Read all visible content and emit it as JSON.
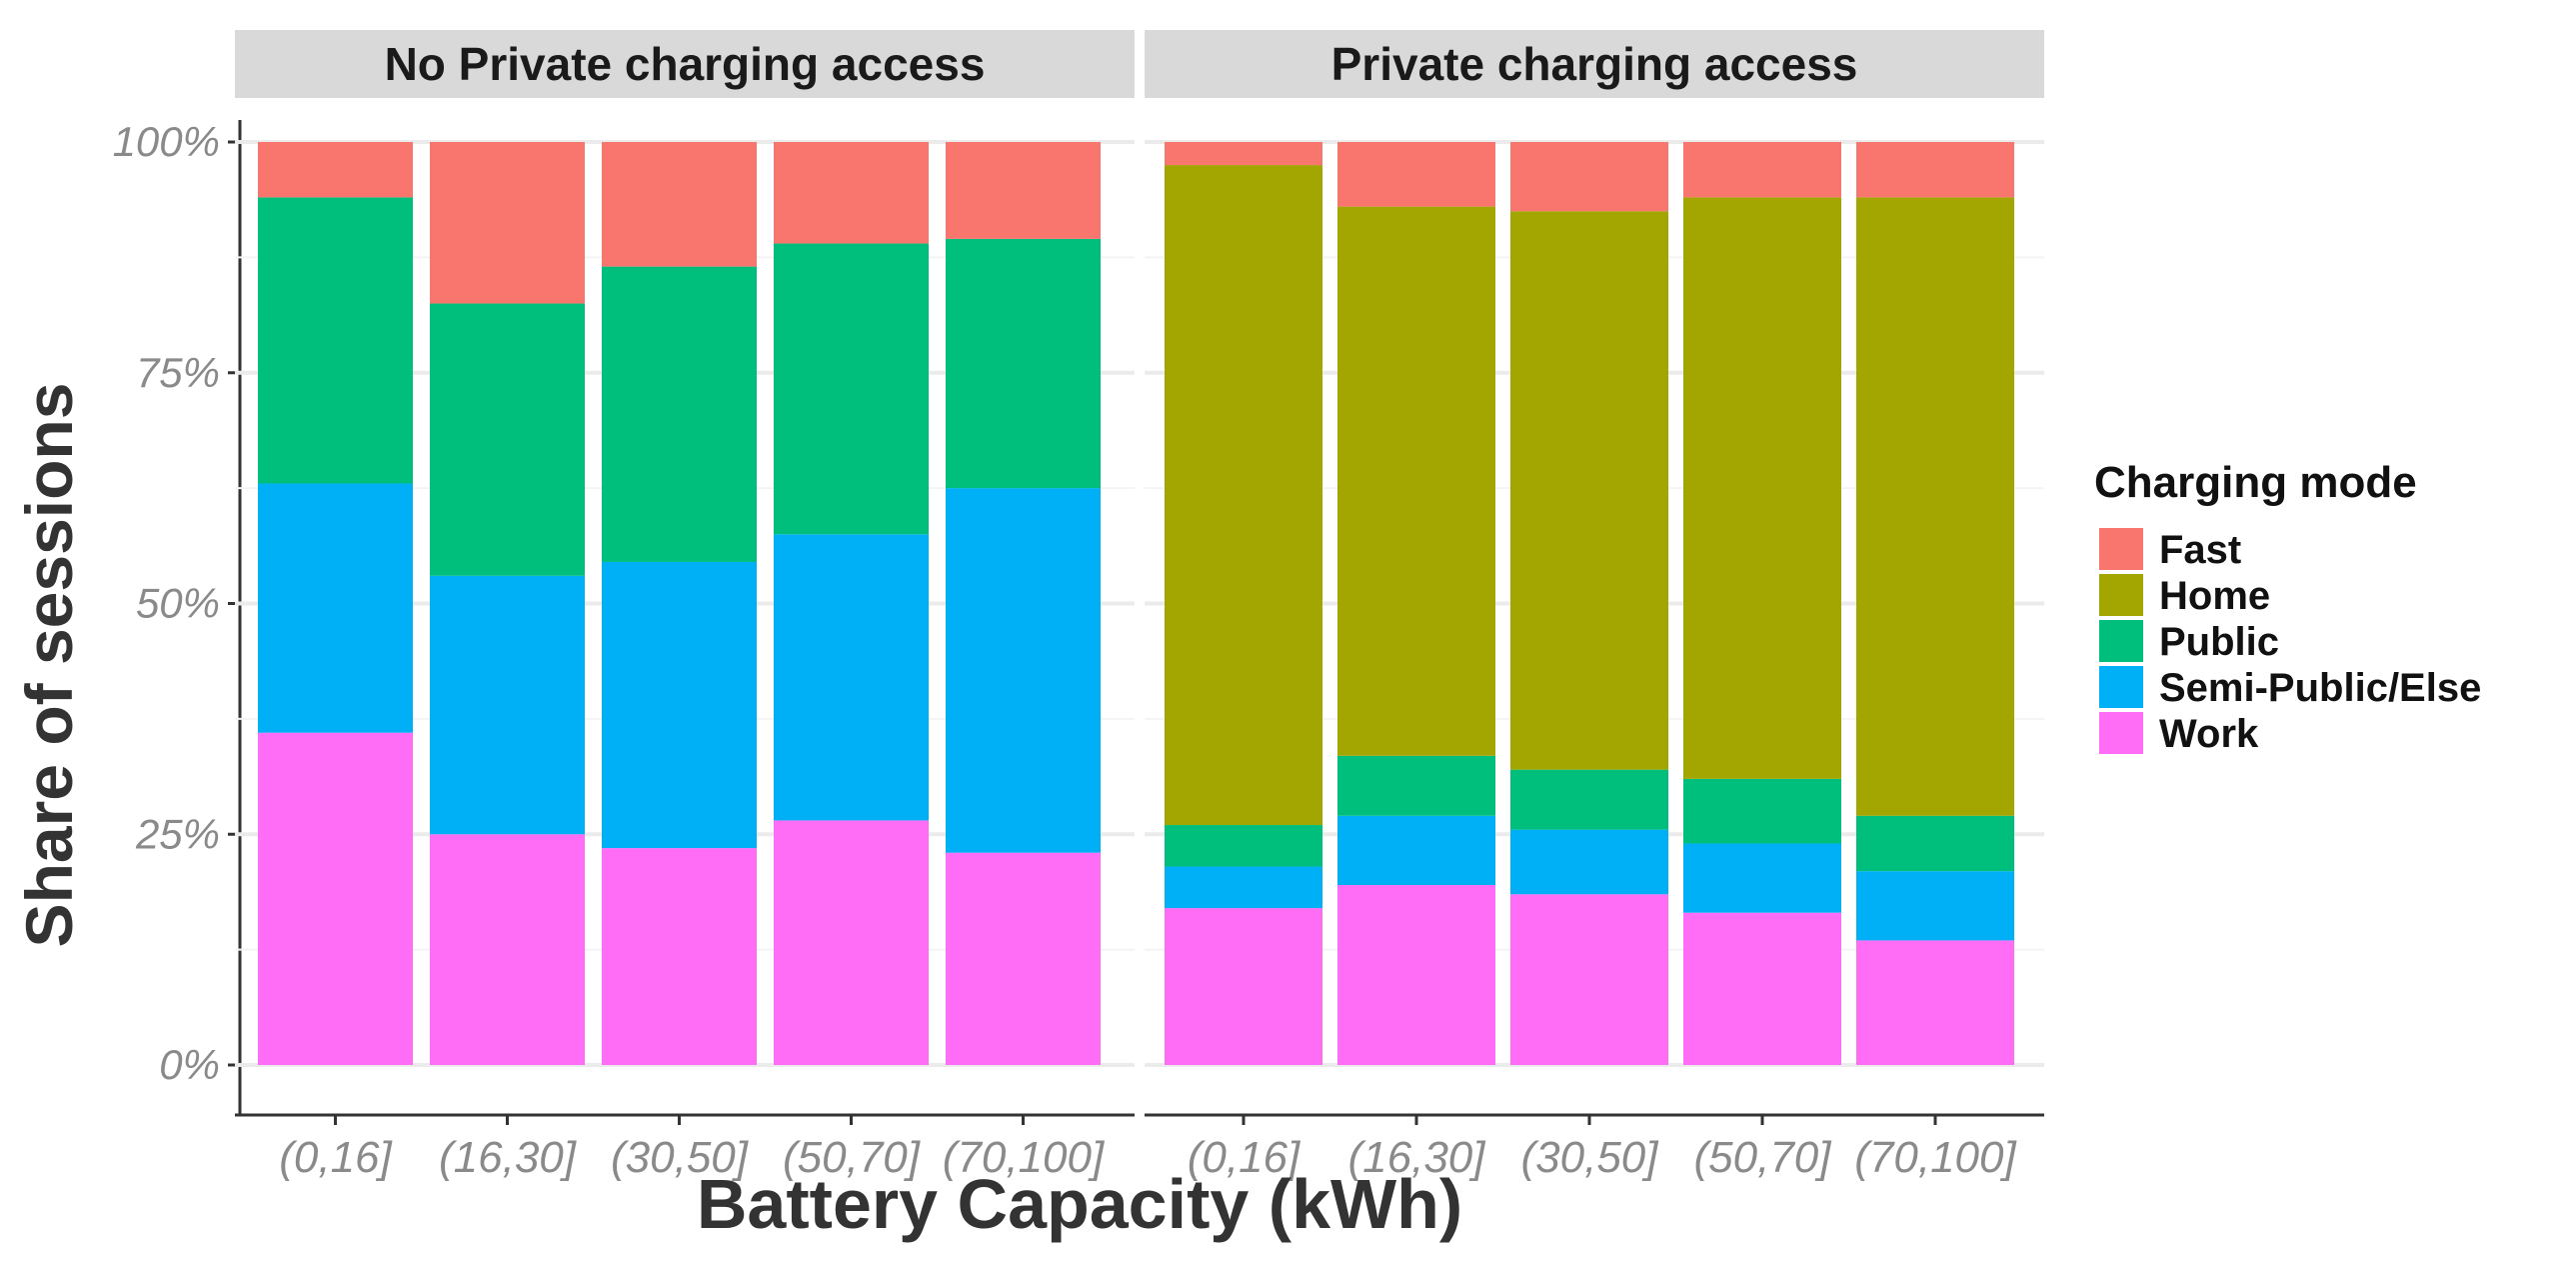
{
  "chart_data": {
    "type": "bar",
    "stacked": true,
    "percent_scale": true,
    "ylabel": "Share of sessions",
    "xlabel": "Battery Capacity (kWh)",
    "ylim": [
      0,
      1
    ],
    "y_ticks": [
      "0%",
      "25%",
      "50%",
      "75%",
      "100%"
    ],
    "y_tick_values": [
      0,
      0.25,
      0.5,
      0.75,
      1.0
    ],
    "grid": true,
    "legend": {
      "title": "Charging mode",
      "placement": "right",
      "entries": [
        "Fast",
        "Home",
        "Public",
        "Semi-Public/Else",
        "Work"
      ]
    },
    "colors": {
      "Fast": "#F8766D",
      "Home": "#A3A500",
      "Public": "#00BF7D",
      "Semi-Public/Else": "#00B0F6",
      "Work": "#FF6CF6"
    },
    "stack_order_bottom_to_top": [
      "Work",
      "Semi-Public/Else",
      "Public",
      "Home",
      "Fast"
    ],
    "categories": [
      "(0,16]",
      "(16,30]",
      "(30,50]",
      "(50,70]",
      "(70,100]"
    ],
    "panels": [
      {
        "title": "No Private charging access",
        "series": [
          {
            "name": "Work",
            "values": [
              0.36,
              0.25,
              0.235,
              0.265,
              0.23
            ]
          },
          {
            "name": "Semi-Public/Else",
            "values": [
              0.27,
              0.28,
              0.31,
              0.31,
              0.395
            ]
          },
          {
            "name": "Public",
            "values": [
              0.31,
              0.295,
              0.32,
              0.315,
              0.27
            ]
          },
          {
            "name": "Home",
            "values": [
              0,
              0,
              0,
              0,
              0
            ]
          },
          {
            "name": "Fast",
            "values": [
              0.06,
              0.175,
              0.135,
              0.11,
              0.105
            ]
          }
        ]
      },
      {
        "title": "Private charging access",
        "series": [
          {
            "name": "Work",
            "values": [
              0.17,
              0.195,
              0.185,
              0.165,
              0.135
            ]
          },
          {
            "name": "Semi-Public/Else",
            "values": [
              0.045,
              0.075,
              0.07,
              0.075,
              0.075
            ]
          },
          {
            "name": "Public",
            "values": [
              0.045,
              0.065,
              0.065,
              0.07,
              0.06
            ]
          },
          {
            "name": "Home",
            "values": [
              0.715,
              0.595,
              0.605,
              0.63,
              0.67
            ]
          },
          {
            "name": "Fast",
            "values": [
              0.025,
              0.07,
              0.075,
              0.06,
              0.06
            ]
          }
        ]
      }
    ]
  }
}
